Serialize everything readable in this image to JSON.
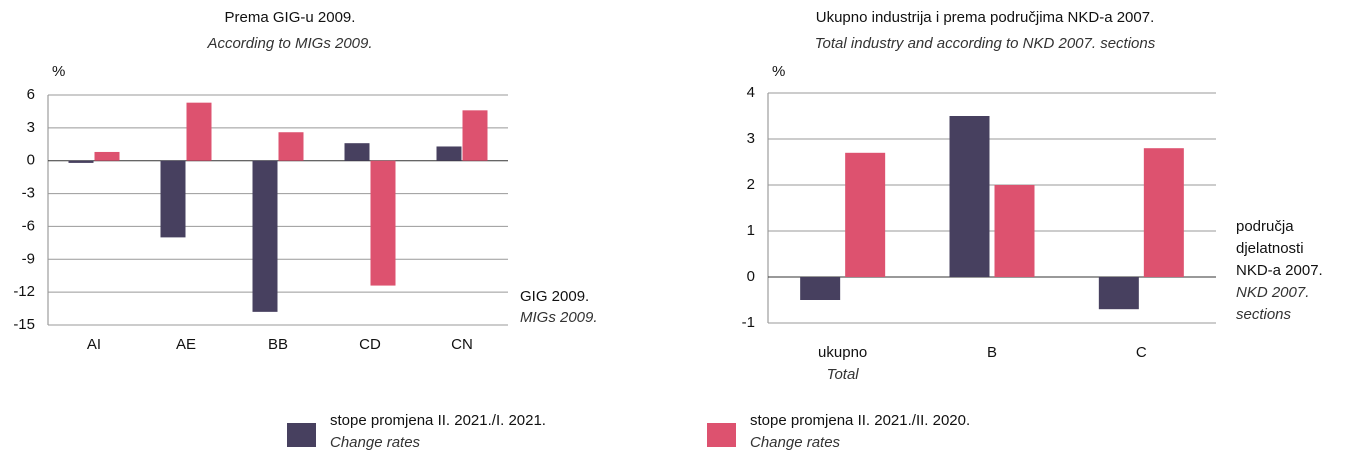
{
  "chart_data": [
    {
      "type": "bar",
      "title": "Prema GIG-u 2009.",
      "subtitle": "According to MIGs 2009.",
      "y_label": "%",
      "x_label": "GIG 2009.",
      "x_label_sub": "MIGs 2009.",
      "categories": [
        "AI",
        "AE",
        "BB",
        "CD",
        "CN"
      ],
      "categories_sub": [
        null,
        null,
        null,
        null,
        null
      ],
      "series": [
        {
          "color": "#47405f",
          "values": [
            -0.2,
            -7.0,
            -13.8,
            1.6,
            1.3
          ]
        },
        {
          "color": "#dd526f",
          "values": [
            0.8,
            5.3,
            2.6,
            -11.4,
            4.6
          ]
        }
      ],
      "ylim": [
        -15,
        6
      ],
      "yticks": [
        -15,
        -12,
        -9,
        -6,
        -3,
        0,
        3,
        6
      ],
      "grid": true
    },
    {
      "type": "bar",
      "title": "Ukupno industrija i prema područjima NKD-a 2007.",
      "subtitle": "Total industry and according to NKD 2007. sections",
      "y_label": "%",
      "x_label_lines": [
        "područja",
        "djelatnosti",
        "NKD-a 2007."
      ],
      "x_label_sub_lines": [
        "NKD 2007.",
        "sections"
      ],
      "categories": [
        "ukupno",
        "B",
        "C"
      ],
      "categories_sub": [
        "Total",
        null,
        null
      ],
      "series": [
        {
          "color": "#47405f",
          "values": [
            -0.5,
            3.5,
            -0.7
          ]
        },
        {
          "color": "#dd526f",
          "values": [
            2.7,
            2.0,
            2.8
          ]
        }
      ],
      "ylim": [
        -1,
        4
      ],
      "yticks": [
        -1,
        0,
        1,
        2,
        3,
        4
      ],
      "grid": true
    }
  ],
  "legend": [
    {
      "name": "stope promjena II. 2021./I. 2021.",
      "subtitle": "Change rates",
      "color": "#47405f"
    },
    {
      "name": "stope promjena II. 2021./II. 2020.",
      "subtitle": "Change rates",
      "color": "#dd526f"
    }
  ]
}
